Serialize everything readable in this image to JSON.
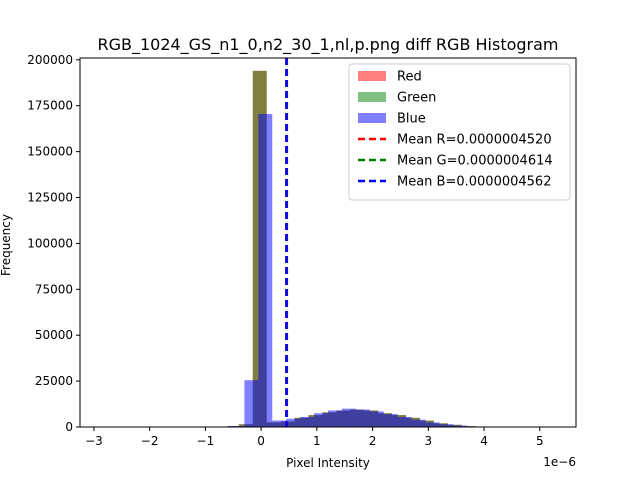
{
  "chart_data": {
    "type": "bar",
    "title": "RGB_1024_GS_n1_0,n2_30_1,nl,p.png diff RGB Histogram",
    "xlabel": "Pixel Intensity",
    "ylabel": "Frequency",
    "x_offset_label": "1e−6",
    "xlim": [
      -3.25,
      5.65
    ],
    "ylim": [
      0,
      201000
    ],
    "x_ticks": [
      {
        "value": -3,
        "label": "−3"
      },
      {
        "value": -2,
        "label": "−2"
      },
      {
        "value": -1,
        "label": "−1"
      },
      {
        "value": 0,
        "label": "0"
      },
      {
        "value": 1,
        "label": "1"
      },
      {
        "value": 2,
        "label": "2"
      },
      {
        "value": 3,
        "label": "3"
      },
      {
        "value": 4,
        "label": "4"
      },
      {
        "value": 5,
        "label": "5"
      }
    ],
    "y_ticks": [
      {
        "value": 0,
        "label": "0"
      },
      {
        "value": 25000,
        "label": "25000"
      },
      {
        "value": 50000,
        "label": "50000"
      },
      {
        "value": 75000,
        "label": "75000"
      },
      {
        "value": 100000,
        "label": "100000"
      },
      {
        "value": 125000,
        "label": "125000"
      },
      {
        "value": 150000,
        "label": "150000"
      },
      {
        "value": 175000,
        "label": "175000"
      },
      {
        "value": 200000,
        "label": "200000"
      }
    ],
    "series": [
      {
        "name": "Red",
        "color": "#ff0000",
        "bins": [
          {
            "x0": -1.0,
            "x1": -0.8,
            "count": 50
          },
          {
            "x0": -0.8,
            "x1": -0.6,
            "count": 200
          },
          {
            "x0": -0.6,
            "x1": -0.4,
            "count": 500
          },
          {
            "x0": -0.4,
            "x1": -0.15,
            "count": 1500
          },
          {
            "x0": -0.15,
            "x1": 0.1,
            "count": 194000
          },
          {
            "x0": 0.1,
            "x1": 0.35,
            "count": 2500
          },
          {
            "x0": 0.35,
            "x1": 0.6,
            "count": 3000
          },
          {
            "x0": 0.6,
            "x1": 0.85,
            "count": 5000
          },
          {
            "x0": 0.85,
            "x1": 1.1,
            "count": 6500
          },
          {
            "x0": 1.1,
            "x1": 1.35,
            "count": 8000
          },
          {
            "x0": 1.35,
            "x1": 1.6,
            "count": 9000
          },
          {
            "x0": 1.6,
            "x1": 1.85,
            "count": 9500
          },
          {
            "x0": 1.85,
            "x1": 2.1,
            "count": 9000
          },
          {
            "x0": 2.1,
            "x1": 2.35,
            "count": 7500
          },
          {
            "x0": 2.35,
            "x1": 2.6,
            "count": 6500
          },
          {
            "x0": 2.6,
            "x1": 2.85,
            "count": 5000
          },
          {
            "x0": 2.85,
            "x1": 3.1,
            "count": 3500
          },
          {
            "x0": 3.1,
            "x1": 3.35,
            "count": 2000
          },
          {
            "x0": 3.35,
            "x1": 3.6,
            "count": 1200
          },
          {
            "x0": 3.6,
            "x1": 3.85,
            "count": 500
          },
          {
            "x0": 3.85,
            "x1": 4.1,
            "count": 200
          }
        ]
      },
      {
        "name": "Green",
        "color": "#008000",
        "bins": [
          {
            "x0": -1.0,
            "x1": -0.8,
            "count": 50
          },
          {
            "x0": -0.8,
            "x1": -0.6,
            "count": 200
          },
          {
            "x0": -0.6,
            "x1": -0.4,
            "count": 500
          },
          {
            "x0": -0.4,
            "x1": -0.15,
            "count": 1500
          },
          {
            "x0": -0.15,
            "x1": 0.1,
            "count": 194000
          },
          {
            "x0": 0.1,
            "x1": 0.35,
            "count": 2500
          },
          {
            "x0": 0.35,
            "x1": 0.6,
            "count": 3000
          },
          {
            "x0": 0.6,
            "x1": 0.85,
            "count": 5000
          },
          {
            "x0": 0.85,
            "x1": 1.1,
            "count": 6500
          },
          {
            "x0": 1.1,
            "x1": 1.35,
            "count": 8000
          },
          {
            "x0": 1.35,
            "x1": 1.6,
            "count": 9000
          },
          {
            "x0": 1.6,
            "x1": 1.85,
            "count": 9500
          },
          {
            "x0": 1.85,
            "x1": 2.1,
            "count": 9000
          },
          {
            "x0": 2.1,
            "x1": 2.35,
            "count": 7500
          },
          {
            "x0": 2.35,
            "x1": 2.6,
            "count": 6500
          },
          {
            "x0": 2.6,
            "x1": 2.85,
            "count": 5000
          },
          {
            "x0": 2.85,
            "x1": 3.1,
            "count": 3500
          },
          {
            "x0": 3.1,
            "x1": 3.35,
            "count": 2000
          },
          {
            "x0": 3.35,
            "x1": 3.6,
            "count": 1200
          },
          {
            "x0": 3.6,
            "x1": 3.85,
            "count": 500
          },
          {
            "x0": 3.85,
            "x1": 4.1,
            "count": 200
          }
        ]
      },
      {
        "name": "Blue",
        "color": "#0000ff",
        "bins": [
          {
            "x0": -0.6,
            "x1": -0.3,
            "count": 500
          },
          {
            "x0": -0.3,
            "x1": -0.05,
            "count": 25500
          },
          {
            "x0": -0.05,
            "x1": 0.2,
            "count": 170500
          },
          {
            "x0": 0.2,
            "x1": 0.45,
            "count": 3500
          },
          {
            "x0": 0.45,
            "x1": 0.7,
            "count": 4500
          },
          {
            "x0": 0.7,
            "x1": 0.95,
            "count": 5500
          },
          {
            "x0": 0.95,
            "x1": 1.2,
            "count": 7500
          },
          {
            "x0": 1.2,
            "x1": 1.45,
            "count": 9000
          },
          {
            "x0": 1.45,
            "x1": 1.7,
            "count": 10000
          },
          {
            "x0": 1.7,
            "x1": 1.95,
            "count": 9500
          },
          {
            "x0": 1.95,
            "x1": 2.2,
            "count": 8500
          },
          {
            "x0": 2.2,
            "x1": 2.45,
            "count": 7000
          },
          {
            "x0": 2.45,
            "x1": 2.7,
            "count": 5500
          },
          {
            "x0": 2.7,
            "x1": 2.95,
            "count": 4000
          },
          {
            "x0": 2.95,
            "x1": 3.2,
            "count": 2500
          },
          {
            "x0": 3.2,
            "x1": 3.45,
            "count": 1500
          },
          {
            "x0": 3.45,
            "x1": 3.7,
            "count": 800
          },
          {
            "x0": 3.7,
            "x1": 3.95,
            "count": 300
          }
        ]
      }
    ],
    "mean_lines": [
      {
        "name": "Mean R=0.0000004520",
        "value": 0.452,
        "color": "#ff0000"
      },
      {
        "name": "Mean G=0.0000004614",
        "value": 0.4614,
        "color": "#008000"
      },
      {
        "name": "Mean B=0.0000004562",
        "value": 0.4562,
        "color": "#0000ff"
      }
    ],
    "legend": {
      "placement": "top-right",
      "entries": [
        {
          "label": "Red",
          "kind": "patch",
          "color": "#ff0000"
        },
        {
          "label": "Green",
          "kind": "patch",
          "color": "#008000"
        },
        {
          "label": "Blue",
          "kind": "patch",
          "color": "#0000ff"
        },
        {
          "label": "Mean R=0.0000004520",
          "kind": "dashed-line",
          "color": "#ff0000"
        },
        {
          "label": "Mean G=0.0000004614",
          "kind": "dashed-line",
          "color": "#008000"
        },
        {
          "label": "Mean B=0.0000004562",
          "kind": "dashed-line",
          "color": "#0000ff"
        }
      ]
    },
    "grid": false
  }
}
